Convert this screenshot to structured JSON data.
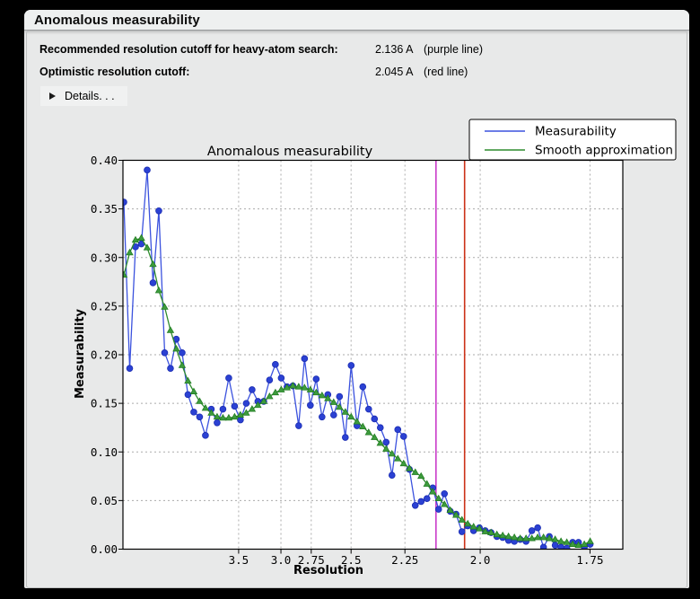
{
  "window": {
    "title": "Anomalous measurability",
    "summary_rows": [
      {
        "label": "Recommended resolution cutoff for heavy-atom search:",
        "value": "2.136 A",
        "note": "(purple line)"
      },
      {
        "label": "Optimistic resolution cutoff:",
        "value": "2.045 A",
        "note": "(red line)"
      }
    ],
    "details_label": "Details. . ."
  },
  "chart_data": {
    "type": "line",
    "title": "Anomalous measurability",
    "xlabel": "Resolution",
    "ylabel": "Measurability",
    "grid": true,
    "legend_position": "top-right",
    "x_axis": {
      "scale": "inverse_d_squared",
      "unit": "Angstrom",
      "range_s": [
        0.001,
        0.3494
      ],
      "ticks": [
        {
          "d": 3.5,
          "label": "3.5"
        },
        {
          "d": 3.0,
          "label": "3.0"
        },
        {
          "d": 2.75,
          "label": "2.75"
        },
        {
          "d": 2.5,
          "label": "2.5"
        },
        {
          "d": 2.25,
          "label": "2.25"
        },
        {
          "d": 2.0,
          "label": "2.0"
        },
        {
          "d": 1.75,
          "label": "1.75"
        }
      ]
    },
    "y_axis": {
      "range": [
        0.0,
        0.4
      ],
      "tick_step": 0.05
    },
    "x_s_start": 0.001625,
    "x_s_step": 0.0040625,
    "series": [
      {
        "name": "Measurability",
        "marker": "circle",
        "line_color": "#3b52de",
        "marker_fill": "#2b41d3",
        "marker_edge": "#1b2db2",
        "values": [
          0.357,
          0.186,
          0.311,
          0.314,
          0.39,
          0.274,
          0.348,
          0.202,
          0.186,
          0.216,
          0.202,
          0.159,
          0.141,
          0.136,
          0.117,
          0.144,
          0.13,
          0.144,
          0.176,
          0.147,
          0.133,
          0.15,
          0.164,
          0.152,
          0.152,
          0.174,
          0.19,
          0.176,
          0.167,
          0.168,
          0.127,
          0.196,
          0.148,
          0.175,
          0.136,
          0.159,
          0.138,
          0.157,
          0.115,
          0.189,
          0.127,
          0.167,
          0.144,
          0.134,
          0.125,
          0.11,
          0.076,
          0.123,
          0.116,
          0.082,
          0.045,
          0.049,
          0.052,
          0.063,
          0.041,
          0.057,
          0.039,
          0.036,
          0.018,
          0.024,
          0.019,
          0.022,
          0.019,
          0.017,
          0.013,
          0.012,
          0.009,
          0.008,
          0.01,
          0.008,
          0.019,
          0.022,
          0.002,
          0.013,
          0.004,
          0.002,
          0.001,
          0.007,
          0.007,
          0.002,
          0.005
        ]
      },
      {
        "name": "Smooth approximation",
        "marker": "triangle",
        "line_color": "#2e8b2e",
        "marker_fill": "#3d9b3d",
        "marker_edge": "#1e7a1e",
        "values": [
          0.282,
          0.305,
          0.318,
          0.32,
          0.31,
          0.293,
          0.266,
          0.249,
          0.225,
          0.206,
          0.189,
          0.173,
          0.162,
          0.152,
          0.145,
          0.14,
          0.136,
          0.135,
          0.135,
          0.136,
          0.138,
          0.14,
          0.144,
          0.148,
          0.152,
          0.157,
          0.161,
          0.164,
          0.166,
          0.168,
          0.167,
          0.166,
          0.164,
          0.161,
          0.158,
          0.155,
          0.151,
          0.146,
          0.141,
          0.136,
          0.131,
          0.126,
          0.12,
          0.115,
          0.109,
          0.103,
          0.098,
          0.093,
          0.088,
          0.083,
          0.079,
          0.075,
          0.067,
          0.059,
          0.052,
          0.046,
          0.04,
          0.035,
          0.03,
          0.026,
          0.023,
          0.021,
          0.018,
          0.017,
          0.015,
          0.014,
          0.013,
          0.012,
          0.011,
          0.011,
          0.011,
          0.012,
          0.012,
          0.011,
          0.01,
          0.008,
          0.007,
          0.005,
          0.004,
          0.005,
          0.008
        ]
      }
    ],
    "vlines": [
      {
        "name": "purple line",
        "resolution": 2.136,
        "color": "#ca3cca"
      },
      {
        "name": "red line",
        "resolution": 2.045,
        "color": "#cc3217"
      }
    ],
    "colors": {
      "plot_bg": "#ffffff",
      "grid": "#ababab",
      "frame": "#000000"
    }
  }
}
